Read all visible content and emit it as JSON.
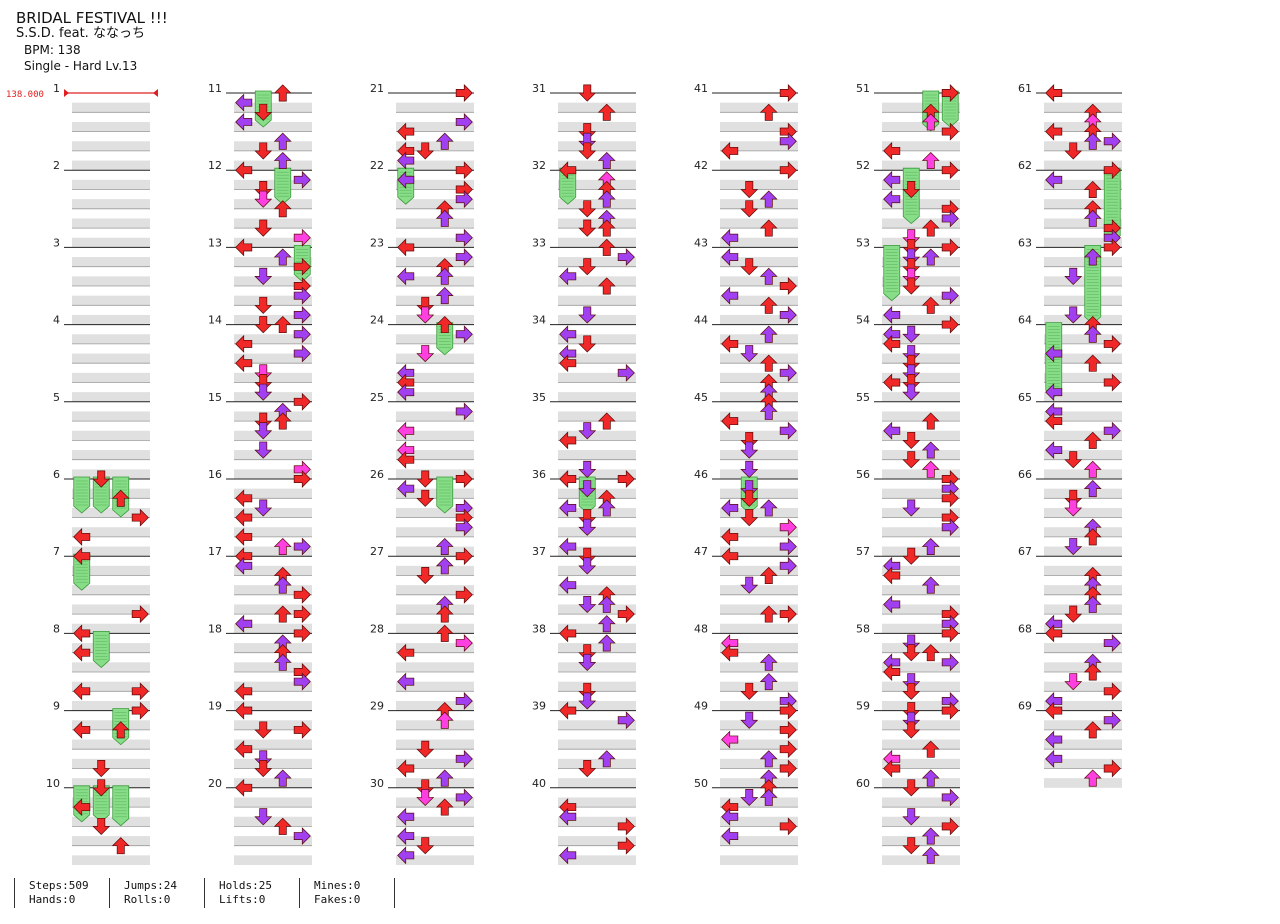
{
  "song": {
    "title": "BRIDAL FESTIVAL !!!",
    "artist": "S.S.D. feat. ななっち",
    "bpm_text": "BPM: 138",
    "difficulty_text": "Single - Hard  Lv.13"
  },
  "bpm_marker": {
    "value_text": "138.000",
    "measure": 1
  },
  "chart_layout": {
    "columns": 7,
    "measures_per_column": 10,
    "total_measures": 69
  },
  "colors": {
    "quarter": "#f02828",
    "eighth": "#a040f0",
    "sixteenth": "#ff40e0",
    "hold": "#88dd88",
    "band": "#e0e0e0"
  },
  "holds": [
    {
      "measure": 11,
      "lane": 1,
      "len": 0.35
    },
    {
      "measure": 12,
      "lane": 2,
      "len": 0.35
    },
    {
      "measure": 13,
      "lane": 3,
      "len": 0.35
    },
    {
      "measure": 22,
      "lane": 0,
      "len": 0.35
    },
    {
      "measure": 24,
      "lane": 2,
      "len": 0.3
    },
    {
      "measure": 26,
      "lane": 2,
      "len": 0.35
    },
    {
      "measure": 32,
      "lane": 0,
      "len": 0.35
    },
    {
      "measure": 36,
      "lane": 1,
      "len": 0.35
    },
    {
      "measure": 46,
      "lane": 1,
      "len": 0.35
    },
    {
      "measure": 51,
      "lane": 3,
      "len": 0.35
    },
    {
      "measure": 51,
      "lane": 2,
      "len": 0.4
    },
    {
      "measure": 52,
      "lane": 1,
      "len": 0.6
    },
    {
      "measure": 53,
      "lane": 0,
      "len": 0.6
    },
    {
      "measure": 62,
      "lane": 3,
      "len": 0.85
    },
    {
      "measure": 63,
      "lane": 2,
      "len": 0.9
    },
    {
      "measure": 64,
      "lane": 0,
      "len": 0.85
    },
    {
      "measure": 6,
      "lane": 0,
      "len": 0.35
    },
    {
      "measure": 6,
      "lane": 2,
      "len": 0.4
    },
    {
      "measure": 6,
      "lane": 1,
      "len": 0.35
    },
    {
      "measure": 7,
      "lane": 0,
      "len": 0.35
    },
    {
      "measure": 8,
      "lane": 1,
      "len": 0.35
    },
    {
      "measure": 9,
      "lane": 2,
      "len": 0.35
    },
    {
      "measure": 10,
      "lane": 1,
      "len": 0.35
    },
    {
      "measure": 10,
      "lane": 2,
      "len": 0.4
    },
    {
      "measure": 10,
      "lane": 0,
      "len": 0.35
    }
  ],
  "stats": {
    "steps": "Steps:509",
    "hands": "Hands:0",
    "jumps": "Jumps:24",
    "rolls": "Rolls:0",
    "holds": "Holds:25",
    "lifts": "Lifts:0",
    "mines": "Mines:0",
    "fakes": "Fakes:0"
  }
}
